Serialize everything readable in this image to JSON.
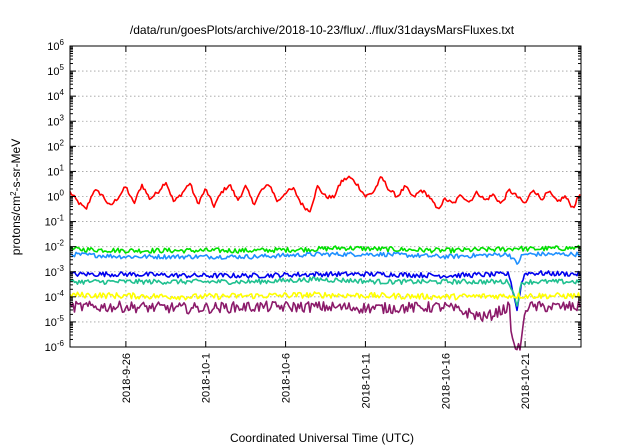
{
  "chart_data": {
    "type": "line",
    "title": "/data/run/goesPlots/archive/2018-10-23/flux/../flux/31daysMarsFluxes.txt",
    "xlabel": "Coordinated Universal Time (UTC)",
    "ylabel": {
      "base": "protons/cm",
      "sup": "2",
      "rest": "-s-sr-MeV"
    },
    "xlim": [
      "2018-09-22T12:00",
      "2018-10-24T12:00"
    ],
    "ylim": [
      1e-06,
      1000000.0
    ],
    "yscale": "log",
    "grid": true,
    "x_ticks": [
      {
        "date": "2018-09-26",
        "label": "2018-9-26"
      },
      {
        "date": "2018-10-01",
        "label": "2018-10-1"
      },
      {
        "date": "2018-10-06",
        "label": "2018-10-6"
      },
      {
        "date": "2018-10-11",
        "label": "2018-10-11"
      },
      {
        "date": "2018-10-16",
        "label": "2018-10-16"
      },
      {
        "date": "2018-10-21",
        "label": "2018-10-21"
      }
    ],
    "y_ticks": [
      {
        "base": "10",
        "exp": "-6"
      },
      {
        "base": "10",
        "exp": "-5"
      },
      {
        "base": "10",
        "exp": "-4"
      },
      {
        "base": "10",
        "exp": "-3"
      },
      {
        "base": "10",
        "exp": "-2"
      },
      {
        "base": "10",
        "exp": "-1"
      },
      {
        "base": "10",
        "exp": "0"
      },
      {
        "base": "10",
        "exp": "1"
      },
      {
        "base": "10",
        "exp": "2"
      },
      {
        "base": "10",
        "exp": "3"
      },
      {
        "base": "10",
        "exp": "4"
      },
      {
        "base": "10",
        "exp": "5"
      },
      {
        "base": "10",
        "exp": "6"
      }
    ],
    "series": [
      {
        "color": "#ff0000",
        "x": [
          "2018-09-22T12:00",
          "2018-09-23T00:00",
          "2018-09-23T12:00",
          "2018-09-24T00:00",
          "2018-09-24T12:00",
          "2018-09-25T00:00",
          "2018-09-25T12:00",
          "2018-09-26T00:00",
          "2018-09-26T12:00",
          "2018-09-27T00:00",
          "2018-09-27T12:00",
          "2018-09-28T00:00",
          "2018-09-28T12:00",
          "2018-09-29T00:00",
          "2018-09-29T12:00",
          "2018-09-30T00:00",
          "2018-09-30T12:00",
          "2018-10-01T00:00",
          "2018-10-01T12:00",
          "2018-10-02T00:00",
          "2018-10-02T12:00",
          "2018-10-03T00:00",
          "2018-10-03T12:00",
          "2018-10-04T00:00",
          "2018-10-04T12:00",
          "2018-10-05T00:00",
          "2018-10-05T12:00",
          "2018-10-06T00:00",
          "2018-10-06T12:00",
          "2018-10-07T00:00",
          "2018-10-07T12:00",
          "2018-10-08T00:00",
          "2018-10-08T12:00",
          "2018-10-09T00:00",
          "2018-10-09T12:00",
          "2018-10-10T00:00",
          "2018-10-10T12:00",
          "2018-10-11T00:00",
          "2018-10-11T12:00",
          "2018-10-12T00:00",
          "2018-10-12T12:00",
          "2018-10-13T00:00",
          "2018-10-13T12:00",
          "2018-10-14T00:00",
          "2018-10-14T12:00",
          "2018-10-15T00:00",
          "2018-10-15T12:00",
          "2018-10-16T00:00",
          "2018-10-16T12:00",
          "2018-10-17T00:00",
          "2018-10-17T12:00",
          "2018-10-18T00:00",
          "2018-10-18T12:00",
          "2018-10-19T00:00",
          "2018-10-19T12:00",
          "2018-10-20T00:00",
          "2018-10-20T12:00",
          "2018-10-21T00:00",
          "2018-10-21T12:00",
          "2018-10-22T00:00",
          "2018-10-22T12:00",
          "2018-10-23T00:00",
          "2018-10-23T12:00",
          "2018-10-24T00:00",
          "2018-10-24T12:00"
        ],
        "y": [
          1.5,
          0.6,
          0.3,
          1.8,
          1.2,
          0.4,
          0.9,
          2.5,
          0.5,
          3.0,
          0.8,
          1.5,
          4.0,
          0.6,
          1.3,
          3.5,
          0.5,
          2.0,
          0.4,
          1.5,
          3.0,
          0.7,
          2.5,
          0.5,
          1.8,
          3.0,
          0.6,
          1.5,
          2.0,
          0.5,
          0.25,
          2.5,
          1.0,
          0.9,
          4.0,
          6.0,
          3.0,
          1.0,
          1.5,
          6.0,
          1.8,
          1.0,
          2.5,
          0.9,
          1.8,
          1.0,
          0.3,
          0.8,
          0.5,
          1.2,
          0.6,
          1.5,
          0.7,
          1.2,
          0.5,
          1.8,
          1.0,
          0.5,
          2.0,
          0.8,
          1.5,
          0.6,
          1.0,
          0.35,
          1.5
        ]
      },
      {
        "color": "#00e000",
        "x": [
          "2018-09-22T12:00",
          "2018-09-26T00:00",
          "2018-09-30T00:00",
          "2018-10-04T00:00",
          "2018-10-08T00:00",
          "2018-10-09T12:00",
          "2018-10-12T00:00",
          "2018-10-16T00:00",
          "2018-10-20T00:00",
          "2018-10-20T12:00",
          "2018-10-21T00:00",
          "2018-10-24T12:00"
        ],
        "y": [
          0.008,
          0.007,
          0.007,
          0.007,
          0.008,
          0.009,
          0.008,
          0.007,
          0.008,
          0.009,
          0.008,
          0.009
        ]
      },
      {
        "color": "#1e90ff",
        "x": [
          "2018-09-22T12:00",
          "2018-09-26T00:00",
          "2018-09-30T00:00",
          "2018-10-04T00:00",
          "2018-10-08T00:00",
          "2018-10-12T00:00",
          "2018-10-16T00:00",
          "2018-10-20T00:00",
          "2018-10-20T12:00",
          "2018-10-20T18:00",
          "2018-10-21T00:00",
          "2018-10-24T12:00"
        ],
        "y": [
          0.005,
          0.004,
          0.004,
          0.004,
          0.005,
          0.005,
          0.004,
          0.005,
          0.002,
          0.004,
          0.005,
          0.005
        ]
      },
      {
        "color": "#0000ee",
        "x": [
          "2018-09-22T12:00",
          "2018-09-26T00:00",
          "2018-09-30T00:00",
          "2018-10-04T00:00",
          "2018-10-08T00:00",
          "2018-10-12T00:00",
          "2018-10-16T00:00",
          "2018-10-20T00:00",
          "2018-10-20T12:00",
          "2018-10-20T18:00",
          "2018-10-21T00:00",
          "2018-10-24T12:00"
        ],
        "y": [
          0.0008,
          0.0008,
          0.0007,
          0.0007,
          0.0008,
          0.0008,
          0.0007,
          0.0008,
          3e-05,
          0.0003,
          0.0009,
          0.0008
        ]
      },
      {
        "color": "#20c090",
        "x": [
          "2018-09-22T12:00",
          "2018-09-26T00:00",
          "2018-09-30T00:00",
          "2018-10-04T00:00",
          "2018-10-08T00:00",
          "2018-10-12T00:00",
          "2018-10-16T00:00",
          "2018-10-20T00:00",
          "2018-10-20T12:00",
          "2018-10-20T18:00",
          "2018-10-21T00:00",
          "2018-10-24T12:00"
        ],
        "y": [
          0.0004,
          0.0004,
          0.0004,
          0.0004,
          0.0005,
          0.0004,
          0.0004,
          0.0004,
          5e-05,
          0.0003,
          0.0004,
          0.0004
        ]
      },
      {
        "color": "#ffff00",
        "x": [
          "2018-09-22T12:00",
          "2018-09-26T00:00",
          "2018-09-30T00:00",
          "2018-10-04T00:00",
          "2018-10-08T00:00",
          "2018-10-12T00:00",
          "2018-10-16T00:00",
          "2018-10-20T00:00",
          "2018-10-24T12:00"
        ],
        "y": [
          0.00012,
          0.00011,
          0.0001,
          0.00011,
          0.00012,
          0.00011,
          0.0001,
          0.00011,
          0.00011
        ]
      },
      {
        "color": "#8b1a6a",
        "x": [
          "2018-09-22T12:00",
          "2018-09-26T00:00",
          "2018-09-30T00:00",
          "2018-10-04T00:00",
          "2018-10-08T00:00",
          "2018-10-12T00:00",
          "2018-10-16T00:00",
          "2018-10-18T12:00",
          "2018-10-20T00:00",
          "2018-10-20T06:00",
          "2018-10-20T12:00",
          "2018-10-20T18:00",
          "2018-10-21T00:00",
          "2018-10-24T12:00"
        ],
        "y": [
          4e-05,
          4e-05,
          3.5e-05,
          4e-05,
          4e-05,
          3.5e-05,
          4e-05,
          1.5e-05,
          4e-05,
          1e-06,
          1e-06,
          1e-06,
          4e-05,
          4e-05
        ]
      }
    ]
  }
}
